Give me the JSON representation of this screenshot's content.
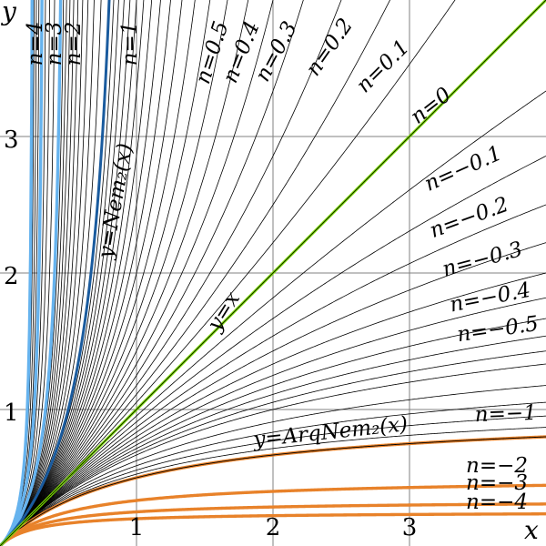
{
  "chart_data": {
    "type": "line",
    "xlim": [
      0,
      4
    ],
    "ylim": [
      0,
      4
    ],
    "xlabel": "x",
    "ylabel": "y",
    "grid": true,
    "x_ticks": [
      "1",
      "2",
      "3"
    ],
    "y_ticks": [
      "1",
      "2",
      "3"
    ],
    "colors": {
      "background": "#ffffff",
      "grid": "#808080",
      "thin_curves": "#000000",
      "identity": "#7ee000",
      "blue_light": "#66b3ee",
      "blue_dark": "#1a5b9e",
      "orange": "#e8822a"
    },
    "families": [
      {
        "family": "thin",
        "n_values": [
          -0.9,
          -0.8,
          -0.7,
          -0.6,
          -0.5,
          -0.45,
          -0.4,
          -0.35,
          -0.3,
          -0.25,
          -0.2,
          -0.15,
          -0.1,
          -0.05,
          0.05,
          0.1,
          0.15,
          0.2,
          0.25,
          0.3,
          0.35,
          0.4,
          0.45,
          0.5,
          0.55,
          0.6,
          0.65,
          0.7,
          0.75,
          0.8,
          0.85,
          0.9,
          0.95,
          1.1,
          1.2,
          1.3,
          1.4,
          1.5,
          1.6,
          1.7,
          1.8,
          1.9,
          2.25,
          2.5,
          2.75,
          3.25,
          3.5,
          3.75
        ]
      },
      {
        "family": "identity",
        "n_values": [
          0
        ]
      },
      {
        "family": "blue_dark",
        "n_values": [
          1
        ]
      },
      {
        "family": "blue_light",
        "n_values": [
          2,
          3,
          4
        ]
      },
      {
        "family": "orange",
        "n_values": [
          -1,
          -2,
          -3,
          -4
        ]
      }
    ],
    "curve_labels": [
      {
        "text": "n=4",
        "n": 4
      },
      {
        "text": "n=3",
        "n": 3
      },
      {
        "text": "n=2",
        "n": 2
      },
      {
        "text": "n=1",
        "n": 1
      },
      {
        "text": "n=0.5",
        "n": 0.5
      },
      {
        "text": "n=0.4",
        "n": 0.4
      },
      {
        "text": "n=0.3",
        "n": 0.3
      },
      {
        "text": "n=0.2",
        "n": 0.2
      },
      {
        "text": "n=0.1",
        "n": 0.1
      },
      {
        "text": "n=0",
        "n": 0
      },
      {
        "text": "n=−0.1",
        "n": -0.1
      },
      {
        "text": "n=−0.2",
        "n": -0.2
      },
      {
        "text": "n=−0.3",
        "n": -0.3
      },
      {
        "text": "n=−0.4",
        "n": -0.4
      },
      {
        "text": "n=−0.5",
        "n": -0.5
      },
      {
        "text": "n=−1",
        "n": -1
      },
      {
        "text": "n=−2",
        "n": -2
      },
      {
        "text": "n=−3",
        "n": -3
      },
      {
        "text": "n=−4",
        "n": -4
      }
    ],
    "annotations": [
      {
        "text": "y=Nem₂(x)"
      },
      {
        "text": "y=x"
      },
      {
        "text": "y=ArqNem₂(x)"
      }
    ]
  }
}
